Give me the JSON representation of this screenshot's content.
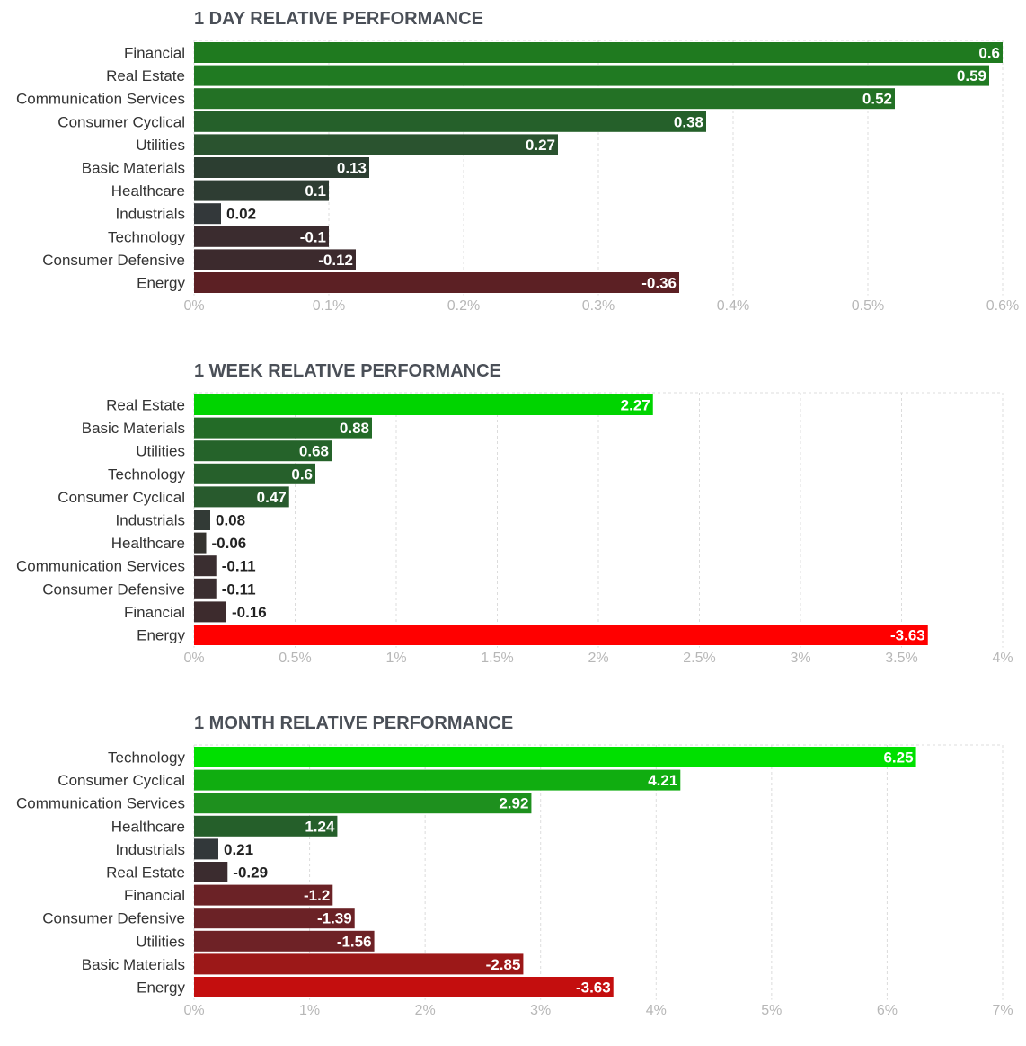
{
  "chart_data": [
    {
      "type": "bar",
      "orientation": "horizontal",
      "title": "1 DAY RELATIVE PERFORMANCE",
      "categories": [
        "Financial",
        "Real Estate",
        "Communication Services",
        "Consumer Cyclical",
        "Utilities",
        "Basic Materials",
        "Healthcare",
        "Industrials",
        "Technology",
        "Consumer Defensive",
        "Energy"
      ],
      "values": [
        0.6,
        0.59,
        0.52,
        0.38,
        0.27,
        0.13,
        0.1,
        0.02,
        -0.1,
        -0.12,
        -0.36
      ],
      "value_labels": [
        "0.6",
        "0.59",
        "0.52",
        "0.38",
        "0.27",
        "0.13",
        "0.1",
        "0.02",
        "-0.1",
        "-0.12",
        "-0.36"
      ],
      "colors": [
        "#1f7a1f",
        "#207a22",
        "#237125",
        "#25602a",
        "#2a532f",
        "#2c3e31",
        "#2e3d33",
        "#33383a",
        "#3b2c2f",
        "#3c2a2d",
        "#5c2024"
      ],
      "x_ticks": [
        0,
        0.1,
        0.2,
        0.3,
        0.4,
        0.5,
        0.6
      ],
      "x_tick_labels": [
        "0%",
        "0.1%",
        "0.2%",
        "0.3%",
        "0.4%",
        "0.5%",
        "0.6%"
      ],
      "xlim": [
        0,
        0.6
      ],
      "xlabel": "",
      "ylabel": "",
      "grid": true,
      "bar_length": "absolute value"
    },
    {
      "type": "bar",
      "orientation": "horizontal",
      "title": "1 WEEK RELATIVE PERFORMANCE",
      "categories": [
        "Real Estate",
        "Basic Materials",
        "Utilities",
        "Technology",
        "Consumer Cyclical",
        "Industrials",
        "Healthcare",
        "Communication Services",
        "Consumer Defensive",
        "Financial",
        "Energy"
      ],
      "values": [
        2.27,
        0.88,
        0.68,
        0.6,
        0.47,
        0.08,
        -0.06,
        -0.11,
        -0.11,
        -0.16,
        -3.63
      ],
      "value_labels": [
        "2.27",
        "0.88",
        "0.68",
        "0.6",
        "0.47",
        "0.08",
        "-0.06",
        "-0.11",
        "-0.11",
        "-0.16",
        "-3.63"
      ],
      "colors": [
        "#00d400",
        "#236b27",
        "#25632a",
        "#26602b",
        "#285a2d",
        "#323a36",
        "#35332f",
        "#3a2e30",
        "#3a2e30",
        "#3d2b2d",
        "#ff0000"
      ],
      "x_ticks": [
        0,
        0.5,
        1,
        1.5,
        2,
        2.5,
        3,
        3.5,
        4
      ],
      "x_tick_labels": [
        "0%",
        "0.5%",
        "1%",
        "1.5%",
        "2%",
        "2.5%",
        "3%",
        "3.5%",
        "4%"
      ],
      "xlim": [
        0,
        4
      ],
      "xlabel": "",
      "ylabel": "",
      "grid": true,
      "bar_length": "absolute value"
    },
    {
      "type": "bar",
      "orientation": "horizontal",
      "title": "1 MONTH RELATIVE PERFORMANCE",
      "categories": [
        "Technology",
        "Consumer Cyclical",
        "Communication Services",
        "Healthcare",
        "Industrials",
        "Real Estate",
        "Financial",
        "Consumer Defensive",
        "Utilities",
        "Basic Materials",
        "Energy"
      ],
      "values": [
        6.25,
        4.21,
        2.92,
        1.24,
        0.21,
        -0.29,
        -1.2,
        -1.39,
        -1.56,
        -2.85,
        -3.63
      ],
      "value_labels": [
        "6.25",
        "4.21",
        "2.92",
        "1.24",
        "0.21",
        "-0.29",
        "-1.2",
        "-1.39",
        "-1.56",
        "-2.85",
        "-3.63"
      ],
      "colors": [
        "#00e000",
        "#10ad10",
        "#1e901e",
        "#255f2a",
        "#32383a",
        "#3b2c2f",
        "#6b2226",
        "#6b2226",
        "#6e2226",
        "#9c1818",
        "#c40e0e"
      ],
      "x_ticks": [
        0,
        1,
        2,
        3,
        4,
        5,
        6,
        7
      ],
      "x_tick_labels": [
        "0%",
        "1%",
        "2%",
        "3%",
        "4%",
        "5%",
        "6%",
        "7%"
      ],
      "xlim": [
        0,
        7
      ],
      "xlabel": "",
      "ylabel": "",
      "grid": true,
      "bar_length": "absolute value"
    }
  ]
}
